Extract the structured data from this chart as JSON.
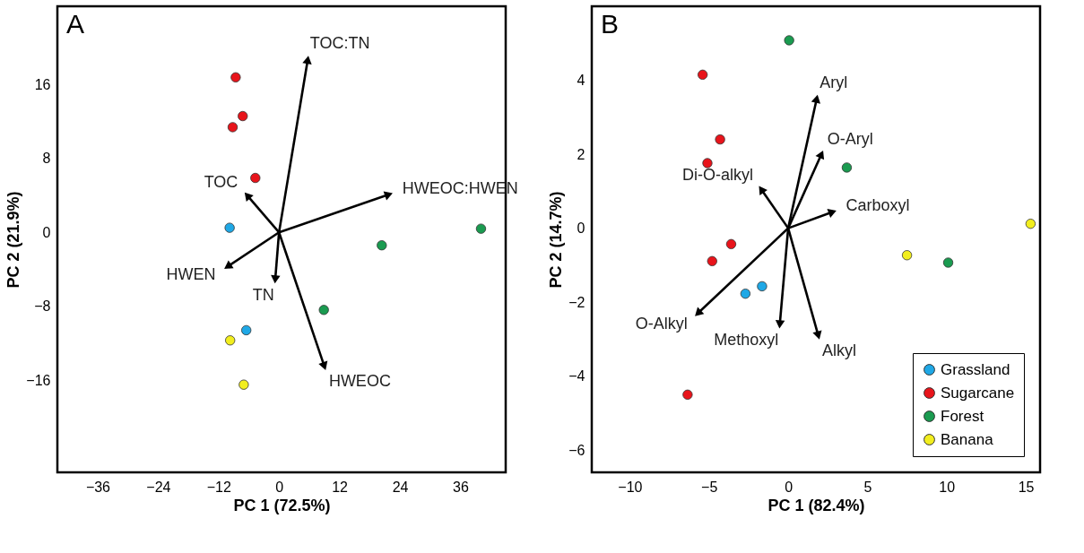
{
  "chart_data": [
    {
      "type": "scatter",
      "title": "A",
      "xlabel": "PC 1 (72.5%)",
      "ylabel": "PC 2 (21.9%)",
      "xlim": [
        -44,
        45
      ],
      "ylim": [
        -26,
        24.5
      ],
      "xticks": [
        -36,
        -24,
        -12,
        0,
        12,
        24,
        36
      ],
      "yticks": [
        -16,
        -8,
        0,
        8,
        16
      ],
      "grid": false,
      "legend": false,
      "marker": "circle",
      "series": [
        {
          "color": "#1fa8e6",
          "x": [
            -9.8,
            -6.5
          ],
          "values": [
            0.5,
            -10.6
          ]
        },
        {
          "color": "#e8141b",
          "x": [
            -8.6,
            -7.2,
            -9.2,
            -4.7
          ],
          "values": [
            16.8,
            12.6,
            11.4,
            5.9
          ]
        },
        {
          "color": "#1a9b50",
          "x": [
            40.1,
            20.4,
            8.9
          ],
          "values": [
            0.4,
            -1.4,
            -8.4
          ]
        },
        {
          "color": "#f2ee1e",
          "x": [
            -9.7,
            -7.0
          ],
          "values": [
            -11.7,
            -16.5
          ]
        },
        {
          "type": "line",
          "marker": "triangle",
          "name": "TOC:TN",
          "color": "#000000",
          "x": [
            0,
            5.7
          ],
          "values": [
            0,
            18.7
          ]
        },
        {
          "type": "line",
          "marker": "triangle",
          "name": "HWEOC:HWEN",
          "color": "#000000",
          "x": [
            0,
            21.8
          ],
          "values": [
            0,
            4.1
          ]
        },
        {
          "type": "line",
          "marker": "triangle",
          "name": "TOC",
          "color": "#000000",
          "x": [
            0,
            -6.3
          ],
          "values": [
            0,
            4.0
          ]
        },
        {
          "type": "line",
          "marker": "triangle",
          "name": "HWEN",
          "color": "#000000",
          "x": [
            0,
            -10.2
          ],
          "values": [
            0,
            -3.7
          ]
        },
        {
          "type": "line",
          "marker": "triangle",
          "name": "TN",
          "color": "#000000",
          "x": [
            0,
            -0.75
          ],
          "values": [
            0,
            -5.1
          ]
        },
        {
          "type": "line",
          "marker": "triangle",
          "name": "HWEOC",
          "color": "#000000",
          "x": [
            0,
            9.0
          ],
          "values": [
            0,
            -14.5
          ]
        }
      ]
    },
    {
      "type": "scatter",
      "title": "B",
      "xlabel": "PC 1 (82.4%)",
      "ylabel": "PC 2 (14.7%)",
      "xlim": [
        -12.4,
        15.9
      ],
      "ylim": [
        -6.6,
        6.0
      ],
      "xticks": [
        -10,
        -5,
        0,
        5,
        10,
        15
      ],
      "yticks": [
        -6,
        -4,
        -2,
        0,
        2,
        4
      ],
      "grid": false,
      "legend": "bottom right",
      "marker": "circle",
      "series": [
        {
          "name": "Grassland",
          "color": "#1fa8e6",
          "x": [
            -1.65,
            -2.7
          ],
          "values": [
            -1.57,
            -1.77
          ]
        },
        {
          "name": "Sugarcane",
          "color": "#e8141b",
          "x": [
            -5.4,
            -4.3,
            -5.1,
            -3.6,
            -4.8,
            -6.35
          ],
          "values": [
            4.15,
            2.4,
            1.76,
            -0.43,
            -0.89,
            -4.5
          ]
        },
        {
          "name": "Forest",
          "color": "#1a9b50",
          "x": [
            0.06,
            3.7,
            10.1
          ],
          "values": [
            5.08,
            1.64,
            -0.93
          ]
        },
        {
          "name": "Banana",
          "color": "#f2ee1e",
          "x": [
            15.3,
            7.5
          ],
          "values": [
            0.12,
            -0.73
          ]
        },
        {
          "type": "line",
          "marker": "triangle",
          "name": "Aryl",
          "color": "#000000",
          "x": [
            0,
            1.8
          ],
          "values": [
            0,
            3.5
          ]
        },
        {
          "type": "line",
          "marker": "triangle",
          "name": "O-Aryl",
          "color": "#000000",
          "x": [
            0,
            2.1
          ],
          "values": [
            0,
            2.0
          ]
        },
        {
          "type": "line",
          "marker": "triangle",
          "name": "Carboxyl",
          "color": "#000000",
          "x": [
            0,
            2.8
          ],
          "values": [
            0,
            0.44
          ]
        },
        {
          "type": "line",
          "marker": "triangle",
          "name": "Di-O-alkyl",
          "color": "#000000",
          "x": [
            0,
            -1.7
          ],
          "values": [
            0,
            1.05
          ]
        },
        {
          "type": "line",
          "marker": "triangle",
          "name": "O-Alkyl",
          "color": "#000000",
          "x": [
            0,
            -5.7
          ],
          "values": [
            0,
            -2.3
          ]
        },
        {
          "type": "line",
          "marker": "triangle",
          "name": "Methoxyl",
          "color": "#000000",
          "x": [
            0,
            -0.53
          ],
          "values": [
            0,
            -2.6
          ]
        },
        {
          "type": "line",
          "marker": "triangle",
          "name": "Alkyl",
          "color": "#000000",
          "x": [
            0,
            1.9
          ],
          "values": [
            0,
            -2.9
          ]
        }
      ]
    }
  ]
}
